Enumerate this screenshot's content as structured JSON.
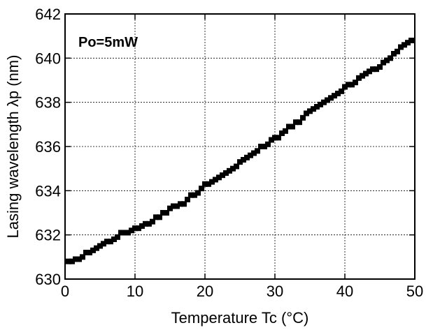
{
  "chart_data": {
    "type": "scatter",
    "xlabel": "Temperature  Tc (°C)",
    "ylabel": "Lasing wavelength  λp (nm)",
    "annotation": "Po=5mW",
    "xlim": [
      0,
      50
    ],
    "ylim": [
      630,
      642
    ],
    "xticks": [
      0,
      10,
      20,
      30,
      40,
      50
    ],
    "yticks": [
      630,
      632,
      634,
      636,
      638,
      640,
      642
    ],
    "grid": true,
    "marker": "square",
    "color": "#000000",
    "series": [
      {
        "x": [
          0.5,
          1.0,
          1.5,
          2.0,
          2.5,
          3.0,
          3.5,
          4.0,
          4.5,
          5.0,
          5.5,
          6.0,
          6.5,
          7.0,
          7.5,
          8.0,
          8.5,
          9.0,
          9.5,
          10.0,
          10.5,
          11.0,
          11.5,
          12.0,
          12.5,
          13.0,
          13.5,
          14.0,
          14.5,
          15.0,
          15.5,
          16.0,
          16.5,
          17.0,
          17.5,
          18.0,
          18.5,
          19.0,
          19.5,
          20.0,
          20.5,
          21.0,
          21.5,
          22.0,
          22.5,
          23.0,
          23.5,
          24.0,
          24.5,
          25.0,
          25.5,
          26.0,
          26.5,
          27.0,
          27.5,
          28.0,
          28.5,
          29.0,
          29.5,
          30.0,
          30.5,
          31.0,
          31.5,
          32.0,
          32.5,
          33.0,
          33.5,
          34.0,
          34.5,
          35.0,
          35.5,
          36.0,
          36.5,
          37.0,
          37.5,
          38.0,
          38.5,
          39.0,
          39.5,
          40.0,
          40.5,
          41.0,
          41.5,
          42.0,
          42.5,
          43.0,
          43.5,
          44.0,
          44.5,
          45.0,
          45.5,
          46.0,
          46.5,
          47.0,
          47.5,
          48.0,
          48.5,
          49.0,
          49.5
        ],
        "y": [
          630.8,
          630.8,
          630.9,
          630.9,
          631.0,
          631.2,
          631.2,
          631.3,
          631.4,
          631.5,
          631.6,
          631.7,
          631.7,
          631.8,
          631.9,
          632.1,
          632.1,
          632.1,
          632.2,
          632.3,
          632.3,
          632.4,
          632.5,
          632.5,
          632.6,
          632.8,
          632.8,
          633.0,
          633.0,
          633.2,
          633.3,
          633.3,
          633.4,
          633.4,
          633.6,
          633.8,
          633.8,
          633.9,
          634.1,
          634.3,
          634.3,
          634.4,
          634.5,
          634.6,
          634.7,
          634.8,
          634.9,
          635.0,
          635.1,
          635.3,
          635.4,
          635.5,
          635.6,
          635.7,
          635.8,
          636.0,
          636.0,
          636.1,
          636.3,
          636.4,
          636.4,
          636.6,
          636.7,
          636.9,
          636.9,
          637.1,
          637.1,
          637.3,
          637.5,
          637.6,
          637.7,
          637.8,
          637.9,
          638.0,
          638.1,
          638.2,
          638.3,
          638.4,
          638.5,
          638.7,
          638.8,
          638.8,
          638.9,
          639.1,
          639.2,
          639.3,
          639.4,
          639.5,
          639.5,
          639.6,
          639.8,
          639.9,
          640.0,
          640.2,
          640.3,
          640.5,
          640.6,
          640.7,
          640.8
        ]
      }
    ]
  }
}
